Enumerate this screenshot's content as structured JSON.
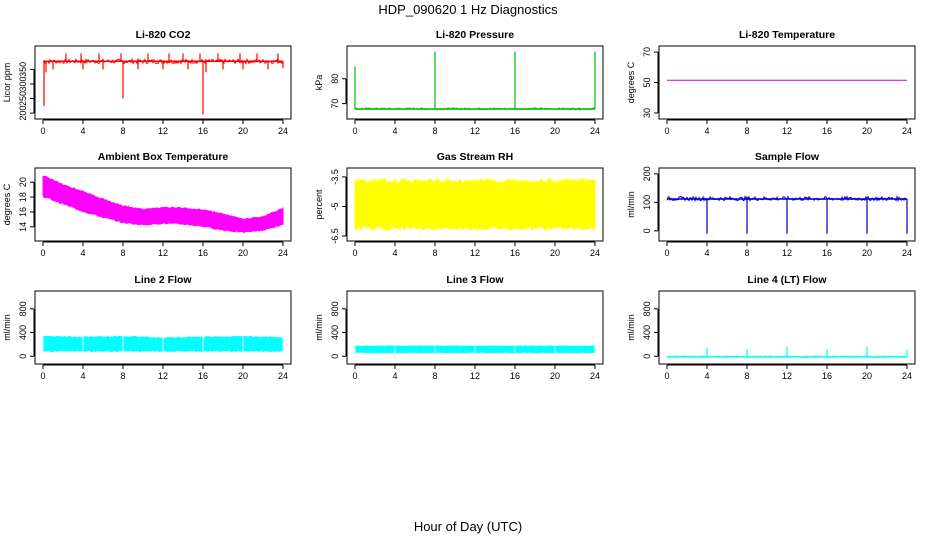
{
  "figure": {
    "title": "HDP_090620  1 Hz Diagnostics",
    "xlabel": "Hour of Day (UTC)"
  },
  "chart_data": [
    {
      "type": "line",
      "title": "Li-820 CO2",
      "ylabel": "Licor ppm",
      "color": "#ff0000",
      "xlim": [
        0,
        24
      ],
      "xticks": [
        0,
        4,
        8,
        12,
        16,
        20,
        24
      ],
      "ylim": [
        190,
        420
      ],
      "yticks": [
        200,
        250,
        300,
        350
      ],
      "style": "spikes",
      "base": 378,
      "band": [
        370,
        385
      ],
      "spikes": [
        {
          "x": 0.1,
          "y": 225
        },
        {
          "x": 0.3,
          "y": 340
        },
        {
          "x": 1.0,
          "y": 350
        },
        {
          "x": 2.3,
          "y": 405
        },
        {
          "x": 3.8,
          "y": 405
        },
        {
          "x": 4.0,
          "y": 350
        },
        {
          "x": 5.6,
          "y": 405
        },
        {
          "x": 6.0,
          "y": 350
        },
        {
          "x": 7.8,
          "y": 405
        },
        {
          "x": 8.0,
          "y": 250
        },
        {
          "x": 9.5,
          "y": 350
        },
        {
          "x": 10.5,
          "y": 405
        },
        {
          "x": 12.0,
          "y": 350
        },
        {
          "x": 12.6,
          "y": 405
        },
        {
          "x": 14.0,
          "y": 405
        },
        {
          "x": 14.5,
          "y": 350
        },
        {
          "x": 15.7,
          "y": 405
        },
        {
          "x": 16.0,
          "y": 195
        },
        {
          "x": 16.3,
          "y": 340
        },
        {
          "x": 17.5,
          "y": 405
        },
        {
          "x": 18.0,
          "y": 350
        },
        {
          "x": 19.7,
          "y": 405
        },
        {
          "x": 20.0,
          "y": 350
        },
        {
          "x": 21.4,
          "y": 405
        },
        {
          "x": 22.5,
          "y": 350
        },
        {
          "x": 23.5,
          "y": 405
        },
        {
          "x": 24.0,
          "y": 355
        }
      ]
    },
    {
      "type": "line",
      "title": "Li-820 Pressure",
      "ylabel": "kPa",
      "color": "#00c000",
      "xlim": [
        0,
        24
      ],
      "xticks": [
        0,
        4,
        8,
        12,
        16,
        20,
        24
      ],
      "ylim": [
        65,
        92
      ],
      "yticks": [
        70,
        80
      ],
      "style": "spikes",
      "base": 67.8,
      "band": [
        67.5,
        68.3
      ],
      "spikes": [
        {
          "x": 0.0,
          "y": 85
        },
        {
          "x": 8.0,
          "y": 91
        },
        {
          "x": 16.0,
          "y": 91
        },
        {
          "x": 24.0,
          "y": 91
        }
      ]
    },
    {
      "type": "line",
      "title": "Li-820 Temperature",
      "ylabel": "degrees C",
      "color": "#cc00cc",
      "xlim": [
        0,
        24
      ],
      "xticks": [
        0,
        4,
        8,
        12,
        16,
        20,
        24
      ],
      "ylim": [
        28,
        72
      ],
      "yticks": [
        30,
        50,
        70
      ],
      "style": "flat",
      "base": 51.5
    },
    {
      "type": "area",
      "title": "Ambient Box Temperature",
      "ylabel": "degrees C",
      "color": "#ff00ff",
      "xlim": [
        0,
        24
      ],
      "xticks": [
        0,
        4,
        8,
        12,
        16,
        20,
        24
      ],
      "ylim": [
        12.5,
        21.5
      ],
      "yticks": [
        14,
        16,
        18,
        20
      ],
      "style": "band",
      "upper": [
        [
          0,
          21.0
        ],
        [
          2,
          19.8
        ],
        [
          4,
          18.8
        ],
        [
          6,
          17.8
        ],
        [
          8,
          16.9
        ],
        [
          10,
          16.4
        ],
        [
          12,
          16.7
        ],
        [
          14,
          16.6
        ],
        [
          16,
          16.4
        ],
        [
          18,
          15.8
        ],
        [
          20,
          15.1
        ],
        [
          22,
          15.4
        ],
        [
          24,
          16.6
        ]
      ],
      "lower": [
        [
          0,
          18.0
        ],
        [
          2,
          17.0
        ],
        [
          4,
          16.0
        ],
        [
          6,
          15.2
        ],
        [
          8,
          14.5
        ],
        [
          10,
          14.2
        ],
        [
          12,
          14.4
        ],
        [
          14,
          14.3
        ],
        [
          16,
          14.0
        ],
        [
          18,
          13.5
        ],
        [
          20,
          13.2
        ],
        [
          22,
          13.5
        ],
        [
          24,
          14.2
        ]
      ]
    },
    {
      "type": "area",
      "title": "Gas Stream RH",
      "ylabel": "percent",
      "color": "#ffff00",
      "xlim": [
        0,
        24
      ],
      "xticks": [
        0,
        4,
        8,
        12,
        16,
        20,
        24
      ],
      "ylim": [
        -6.6,
        -3.2
      ],
      "yticks": [
        -6.5,
        -5.0,
        -3.5
      ],
      "style": "band",
      "upper": [
        [
          0,
          -3.6
        ],
        [
          24,
          -3.6
        ]
      ],
      "lower": [
        [
          0,
          -6.2
        ],
        [
          24,
          -6.2
        ]
      ]
    },
    {
      "type": "line",
      "title": "Sample Flow",
      "ylabel": "ml/min",
      "color": "#0000cc",
      "xlim": [
        0,
        24
      ],
      "xticks": [
        0,
        4,
        8,
        12,
        16,
        20,
        24
      ],
      "ylim": [
        -25,
        210
      ],
      "yticks": [
        0,
        100,
        200
      ],
      "style": "spikes",
      "base": 112,
      "band": [
        106,
        120
      ],
      "spikes": [
        {
          "x": 4.0,
          "y": -10
        },
        {
          "x": 8.0,
          "y": -10
        },
        {
          "x": 12.0,
          "y": -10
        },
        {
          "x": 16.0,
          "y": -10
        },
        {
          "x": 20.0,
          "y": -10
        },
        {
          "x": 24.0,
          "y": -10
        }
      ]
    },
    {
      "type": "area",
      "title": "Line 2 Flow",
      "ylabel": "ml/min",
      "color": "#00ffff",
      "xlim": [
        0,
        24
      ],
      "xticks": [
        0,
        4,
        8,
        12,
        16,
        20,
        24
      ],
      "ylim": [
        -80,
        1050
      ],
      "yticks": [
        0,
        400,
        800
      ],
      "style": "band",
      "upper": [
        [
          0,
          340
        ],
        [
          4,
          330
        ],
        [
          8,
          340
        ],
        [
          12,
          320
        ],
        [
          16,
          330
        ],
        [
          20,
          340
        ],
        [
          24,
          320
        ]
      ],
      "lower": [
        [
          0,
          80
        ],
        [
          24,
          80
        ]
      ],
      "gaps": [
        0,
        4,
        8,
        12,
        16,
        20,
        24
      ]
    },
    {
      "type": "area",
      "title": "Line 3 Flow",
      "ylabel": "ml/min",
      "color": "#00ffff",
      "xlim": [
        0,
        24
      ],
      "xticks": [
        0,
        4,
        8,
        12,
        16,
        20,
        24
      ],
      "ylim": [
        -80,
        1050
      ],
      "yticks": [
        0,
        400,
        800
      ],
      "style": "band",
      "upper": [
        [
          0,
          175
        ],
        [
          24,
          175
        ]
      ],
      "lower": [
        [
          0,
          60
        ],
        [
          24,
          60
        ]
      ],
      "gaps": [
        0,
        4,
        8,
        12,
        16,
        20,
        24
      ]
    },
    {
      "type": "line",
      "title": "Line 4 (LT) Flow",
      "ylabel": "ml/min",
      "color": "#00ffff",
      "xlim": [
        0,
        24
      ],
      "xticks": [
        0,
        4,
        8,
        12,
        16,
        20,
        24
      ],
      "ylim": [
        -80,
        1050
      ],
      "yticks": [
        0,
        400,
        800
      ],
      "style": "spikes",
      "base": -10,
      "band": [
        -20,
        5
      ],
      "spikes": [
        {
          "x": 4.0,
          "y": 150
        },
        {
          "x": 8.0,
          "y": 120
        },
        {
          "x": 12.0,
          "y": 160
        },
        {
          "x": 16.0,
          "y": 120
        },
        {
          "x": 20.0,
          "y": 160
        },
        {
          "x": 24.0,
          "y": 110
        }
      ]
    }
  ]
}
